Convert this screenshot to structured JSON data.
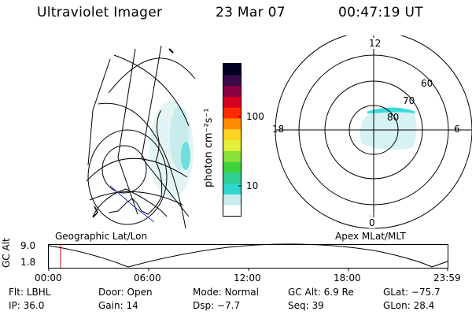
{
  "header": {
    "instrument": "Ultraviolet Imager",
    "date": "23 Mar 07",
    "time": "00:47:19 UT"
  },
  "colorbar": {
    "unit_label": "photon cm⁻²s⁻¹",
    "ticks": [
      "100",
      "10"
    ],
    "colors": [
      "#ffffff",
      "#c8ecec",
      "#2fd6cf",
      "#2fd091",
      "#3fd23f",
      "#8ae03a",
      "#e6ef3a",
      "#ffd31f",
      "#ff8c00",
      "#ff2a00",
      "#d40020",
      "#8a0040",
      "#3a0a4a",
      "#000020"
    ]
  },
  "left_map": {
    "caption": "Geographic Lat/Lon"
  },
  "right_map": {
    "caption": "Apex MLat/MLT",
    "mlt_labels": {
      "top": "12",
      "left": "18",
      "right": "6",
      "bottom": "0"
    },
    "lat_labels": [
      "60",
      "70",
      "80"
    ]
  },
  "altitude_plot": {
    "ylabel": "GC Alt",
    "yticks": [
      "9.0",
      "1.8"
    ],
    "xticks": [
      "00:00",
      "06:00",
      "12:00",
      "18:00",
      "23:59"
    ],
    "marker_time": "00:47"
  },
  "footer": {
    "row1": [
      {
        "label": "Flt:",
        "value": "LBHL"
      },
      {
        "label": "Door:",
        "value": "Open"
      },
      {
        "label": "Mode:",
        "value": "Normal"
      },
      {
        "label": "GC Alt:",
        "value": "6.9 Re"
      },
      {
        "label": "GLat:",
        "value": "−75.7"
      }
    ],
    "row2": [
      {
        "label": "IP:",
        "value": "36.0"
      },
      {
        "label": "Gain:",
        "value": "14"
      },
      {
        "label": "Dsp:",
        "value": "−7.7"
      },
      {
        "label": "Seq:",
        "value": "39"
      },
      {
        "label": "GLon:",
        "value": "28.4"
      }
    ]
  }
}
